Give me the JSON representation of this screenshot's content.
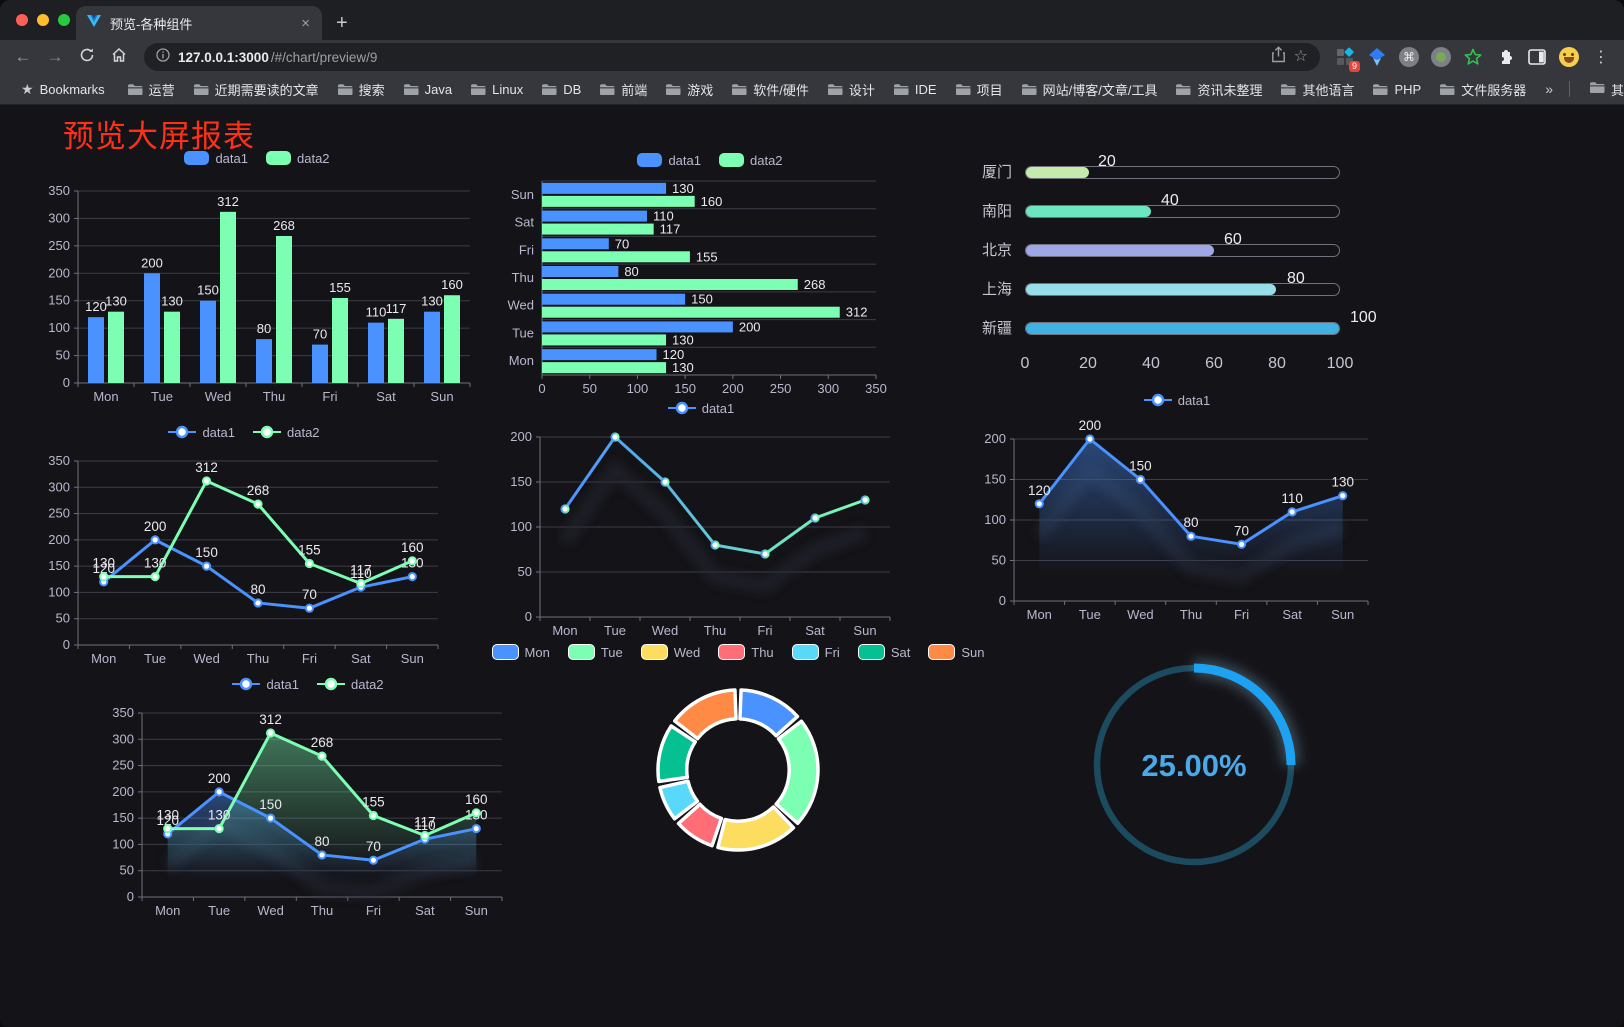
{
  "browser": {
    "tab_title": "预览-各种组件",
    "url_host": "127.0.0.1:3000",
    "url_path": "/#/chart/preview/9",
    "bookmarks_label": "Bookmarks",
    "bookmarks": [
      "运营",
      "近期需要读的文章",
      "搜索",
      "Java",
      "Linux",
      "DB",
      "前端",
      "游戏",
      "软件/硬件",
      "设计",
      "IDE",
      "项目",
      "网站/博客/文章/工具",
      "资讯未整理",
      "其他语言",
      "PHP",
      "文件服务器"
    ],
    "overflow_chevron": "»",
    "other_bookmarks": "其他书签",
    "extension_badge": "9",
    "new_tab_label": "+",
    "tab_close_label": "×",
    "back_icon": "←",
    "forward_icon": "→",
    "kebab_icon": "⋮",
    "cmd_icon": "⌘",
    "bookmark_star": "★",
    "page_star": "☆"
  },
  "page": {
    "title": "预览大屏报表",
    "title_color": "#fe3118"
  },
  "theme": {
    "data1_color": "#4992ff",
    "data2_color": "#7cffb2",
    "axis_label_color": "#b9b8ce",
    "grid_line_color": "#3d3d48",
    "axis_line_color": "#71717c",
    "value_label_color": "#e9e9ee",
    "background": "#141318"
  },
  "chart_data": [
    {
      "type": "bar",
      "orientation": "vertical",
      "categories": [
        "Mon",
        "Tue",
        "Wed",
        "Thu",
        "Fri",
        "Sat",
        "Sun"
      ],
      "series": [
        {
          "name": "data1",
          "color": "#4992ff",
          "values": [
            120,
            200,
            150,
            80,
            70,
            110,
            130
          ]
        },
        {
          "name": "data2",
          "color": "#7cffb2",
          "values": [
            130,
            130,
            312,
            268,
            155,
            117,
            160
          ]
        }
      ],
      "ylim": [
        0,
        350
      ],
      "ytick_step": 50,
      "value_labels": true,
      "legend": "roundRect"
    },
    {
      "type": "bar",
      "orientation": "horizontal",
      "categories": [
        "Mon",
        "Tue",
        "Wed",
        "Thu",
        "Fri",
        "Sat",
        "Sun"
      ],
      "series": [
        {
          "name": "data1",
          "color": "#4992ff",
          "values": [
            120,
            200,
            150,
            80,
            70,
            110,
            130
          ]
        },
        {
          "name": "data2",
          "color": "#7cffb2",
          "values": [
            130,
            130,
            312,
            268,
            155,
            117,
            160
          ]
        }
      ],
      "xlim": [
        0,
        350
      ],
      "xtick_step": 50,
      "value_labels": true,
      "legend": "roundRect"
    },
    {
      "type": "progress",
      "max": 100,
      "xticks": [
        0,
        20,
        40,
        60,
        80,
        100
      ],
      "items": [
        {
          "label": "厦门",
          "value": 20,
          "color": "#c4ebad"
        },
        {
          "label": "南阳",
          "value": 40,
          "color": "#6be6c1"
        },
        {
          "label": "北京",
          "value": 60,
          "color": "#a0a7e6"
        },
        {
          "label": "上海",
          "value": 80,
          "color": "#96dee8"
        },
        {
          "label": "新疆",
          "value": 100,
          "color": "#3fb1e3"
        }
      ]
    },
    {
      "type": "line",
      "categories": [
        "Mon",
        "Tue",
        "Wed",
        "Thu",
        "Fri",
        "Sat",
        "Sun"
      ],
      "series": [
        {
          "name": "data1",
          "color": "#4992ff",
          "values": [
            120,
            200,
            150,
            80,
            70,
            110,
            130
          ]
        },
        {
          "name": "data2",
          "color": "#7cffb2",
          "values": [
            130,
            130,
            312,
            268,
            155,
            117,
            160
          ]
        }
      ],
      "ylim": [
        0,
        350
      ],
      "ytick_step": 50,
      "value_labels": true,
      "legend": "circle"
    },
    {
      "type": "line",
      "categories": [
        "Mon",
        "Tue",
        "Wed",
        "Thu",
        "Fri",
        "Sat",
        "Sun"
      ],
      "series": [
        {
          "name": "data1",
          "gradient": [
            "#4992ff",
            "#7cffb2"
          ],
          "values": [
            120,
            200,
            150,
            80,
            70,
            110,
            130
          ]
        }
      ],
      "ylim": [
        0,
        200
      ],
      "ytick_step": 50,
      "value_labels": false,
      "legend": "circle",
      "shadow": true
    },
    {
      "type": "line",
      "categories": [
        "Mon",
        "Tue",
        "Wed",
        "Thu",
        "Fri",
        "Sat",
        "Sun"
      ],
      "series": [
        {
          "name": "data1",
          "color": "#4992ff",
          "area": true,
          "values": [
            120,
            200,
            150,
            80,
            70,
            110,
            130
          ]
        }
      ],
      "ylim": [
        0,
        200
      ],
      "ytick_step": 50,
      "value_labels": true,
      "legend": "circle",
      "shadow": true
    },
    {
      "type": "line",
      "categories": [
        "Mon",
        "Tue",
        "Wed",
        "Thu",
        "Fri",
        "Sat",
        "Sun"
      ],
      "series": [
        {
          "name": "data1",
          "color": "#4992ff",
          "area": true,
          "values": [
            120,
            200,
            150,
            80,
            70,
            110,
            130
          ]
        },
        {
          "name": "data2",
          "color": "#7cffb2",
          "area": true,
          "values": [
            130,
            130,
            312,
            268,
            155,
            117,
            160
          ]
        }
      ],
      "ylim": [
        0,
        350
      ],
      "ytick_step": 50,
      "value_labels": true,
      "legend": "circle",
      "shadow": true
    },
    {
      "type": "pie",
      "inner_radius": 0.64,
      "legend": "roundRect",
      "items": [
        {
          "label": "Mon",
          "value": 120,
          "color": "#4992ff"
        },
        {
          "label": "Tue",
          "value": 200,
          "color": "#7cffb2"
        },
        {
          "label": "Wed",
          "value": 150,
          "color": "#fddd60"
        },
        {
          "label": "Thu",
          "value": 80,
          "color": "#ff6e76"
        },
        {
          "label": "Fri",
          "value": 70,
          "color": "#58d9f9"
        },
        {
          "label": "Sat",
          "value": 110,
          "color": "#05c091"
        },
        {
          "label": "Sun",
          "value": 130,
          "color": "#ff8a45"
        }
      ]
    },
    {
      "type": "gauge",
      "value": 25,
      "display": "25.00%",
      "progress_color": "#1da2f2",
      "track_color": "#1c4a5e",
      "text_color": "#4aa9e9"
    }
  ]
}
